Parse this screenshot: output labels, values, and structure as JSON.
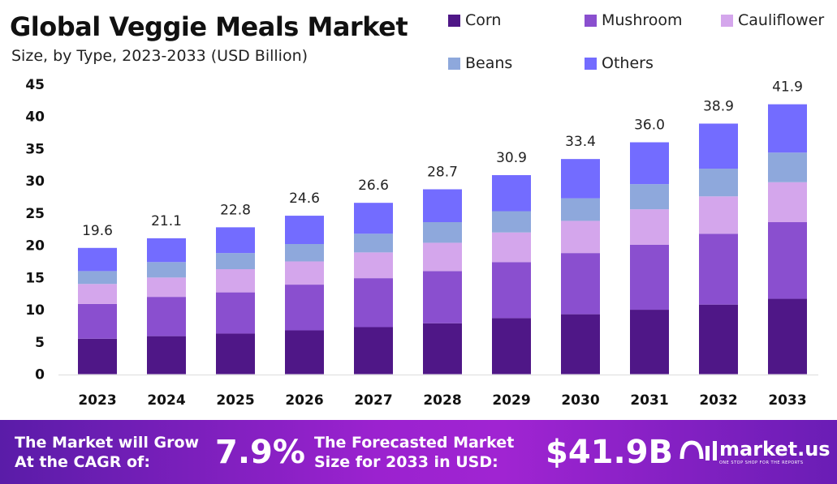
{
  "chart_data": {
    "type": "bar",
    "stacked": true,
    "title": "Global Veggie Meals Market",
    "subtitle": "Size, by Type, 2023-2033 (USD Billion)",
    "xlabel": "",
    "ylabel": "",
    "ylim": [
      0,
      45
    ],
    "yticks": [
      0,
      5,
      10,
      15,
      20,
      25,
      30,
      35,
      40,
      45
    ],
    "grid": false,
    "legend_placement": "top-right",
    "categories": [
      "2023",
      "2024",
      "2025",
      "2026",
      "2027",
      "2028",
      "2029",
      "2030",
      "2031",
      "2032",
      "2033"
    ],
    "totals": [
      "19.6",
      "21.1",
      "22.8",
      "24.6",
      "26.6",
      "28.7",
      "30.9",
      "33.4",
      "36.0",
      "38.9",
      "41.9"
    ],
    "series": [
      {
        "name": "Corn",
        "color": "#4f1787",
        "values": [
          5.5,
          5.9,
          6.3,
          6.8,
          7.3,
          7.9,
          8.7,
          9.3,
          10.0,
          10.8,
          11.7
        ]
      },
      {
        "name": "Mushroom",
        "color": "#8a4fcf",
        "values": [
          5.4,
          6.1,
          6.4,
          7.1,
          7.6,
          8.1,
          8.7,
          9.5,
          10.1,
          11.0,
          11.9
        ]
      },
      {
        "name": "Cauliflower",
        "color": "#d4a6ec",
        "values": [
          3.1,
          3.0,
          3.6,
          3.6,
          4.0,
          4.4,
          4.6,
          5.0,
          5.5,
          5.8,
          6.2
        ]
      },
      {
        "name": "Beans",
        "color": "#8ea8dc",
        "values": [
          2.0,
          2.4,
          2.5,
          2.7,
          2.9,
          3.2,
          3.3,
          3.5,
          3.9,
          4.3,
          4.6
        ]
      },
      {
        "name": "Others",
        "color": "#736cff",
        "values": [
          3.6,
          3.7,
          4.0,
          4.4,
          4.8,
          5.1,
          5.6,
          6.1,
          6.5,
          7.0,
          7.5
        ]
      }
    ]
  },
  "footer": {
    "cagr_label_1": "The Market will Grow",
    "cagr_label_2": "At the CAGR of:",
    "cagr_value": "7.9%",
    "forecast_label_1": "The Forecasted Market",
    "forecast_label_2": "Size for 2033 in USD:",
    "forecast_value": "$41.9B",
    "logo_name": "market.us",
    "logo_tagline": "ONE STOP SHOP FOR THE REPORTS"
  }
}
